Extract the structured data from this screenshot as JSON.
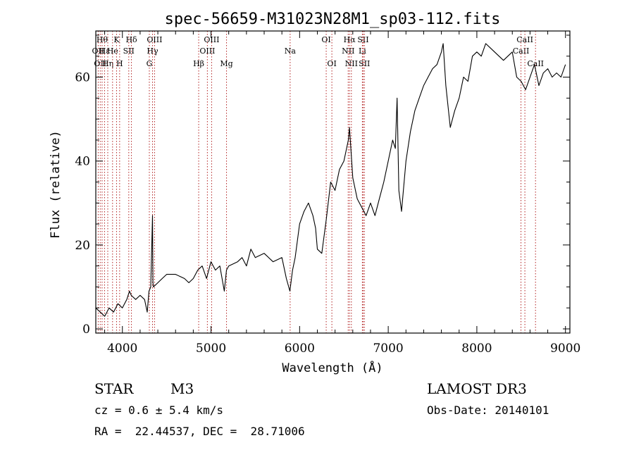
{
  "chart_data": {
    "type": "line",
    "title": "spec-56659-M31023N28M1_sp03-112.fits",
    "xlabel": "Wavelength (Å)",
    "ylabel": "Flux (relative)",
    "xlim": [
      3700,
      9050
    ],
    "ylim": [
      -1,
      71
    ],
    "xticks": [
      4000,
      5000,
      6000,
      7000,
      8000,
      9000
    ],
    "yticks": [
      0,
      20,
      40,
      60
    ],
    "series": [
      {
        "name": "spectrum",
        "x": [
          3700,
          3750,
          3800,
          3850,
          3900,
          3950,
          4000,
          4050,
          4080,
          4100,
          4150,
          4200,
          4250,
          4280,
          4300,
          4320,
          4340,
          4345,
          4350,
          4400,
          4450,
          4500,
          4600,
          4700,
          4750,
          4800,
          4850,
          4900,
          4950,
          5000,
          5050,
          5100,
          5150,
          5175,
          5200,
          5300,
          5350,
          5400,
          5450,
          5500,
          5600,
          5700,
          5800,
          5850,
          5890,
          5920,
          5950,
          6000,
          6050,
          6100,
          6150,
          6180,
          6200,
          6250,
          6300,
          6350,
          6400,
          6450,
          6500,
          6550,
          6563,
          6600,
          6650,
          6700,
          6750,
          6800,
          6850,
          6900,
          6950,
          7000,
          7050,
          7080,
          7100,
          7120,
          7150,
          7200,
          7250,
          7300,
          7350,
          7400,
          7450,
          7500,
          7550,
          7600,
          7620,
          7650,
          7700,
          7750,
          7800,
          7850,
          7900,
          7950,
          8000,
          8050,
          8100,
          8150,
          8200,
          8300,
          8400,
          8450,
          8500,
          8550,
          8600,
          8650,
          8700,
          8750,
          8800,
          8850,
          8900,
          8950,
          9000
        ],
        "y": [
          5,
          4,
          3,
          5,
          4,
          6,
          5,
          7,
          9,
          8,
          7,
          8,
          7,
          4,
          9,
          10,
          27,
          11,
          10,
          11,
          12,
          13,
          13,
          12,
          11,
          12,
          14,
          15,
          12,
          16,
          14,
          15,
          9,
          14,
          15,
          16,
          17,
          15,
          19,
          17,
          18,
          16,
          17,
          12,
          9,
          14,
          17,
          25,
          28,
          30,
          27,
          24,
          19,
          18,
          26,
          35,
          33,
          38,
          40,
          45,
          48,
          36,
          31,
          29,
          27,
          30,
          27,
          31,
          35,
          40,
          45,
          43,
          55,
          33,
          28,
          40,
          47,
          52,
          55,
          58,
          60,
          62,
          63,
          66,
          68,
          58,
          48,
          52,
          55,
          60,
          59,
          65,
          66,
          65,
          68,
          67,
          66,
          64,
          66,
          60,
          59,
          57,
          60,
          63,
          58,
          61,
          62,
          60,
          61,
          60,
          63
        ]
      }
    ],
    "lines": [
      {
        "wl": 3727,
        "label": "OII",
        "row": 2
      },
      {
        "wl": 3750,
        "label": "OII",
        "row": 3
      },
      {
        "wl": 3771,
        "label": "Hθ",
        "row": 1
      },
      {
        "wl": 3799,
        "label": "Hε",
        "row": 2
      },
      {
        "wl": 3835,
        "label": "Hη",
        "row": 3
      },
      {
        "wl": 3889,
        "label": "He",
        "row": 2
      },
      {
        "wl": 3934,
        "label": "K",
        "row": 1
      },
      {
        "wl": 3969,
        "label": "H",
        "row": 3
      },
      {
        "wl": 4072,
        "label": "SII",
        "row": 2
      },
      {
        "wl": 4102,
        "label": "Hδ",
        "row": 1
      },
      {
        "wl": 4304,
        "label": "G",
        "row": 3
      },
      {
        "wl": 4340,
        "label": "Hγ",
        "row": 2
      },
      {
        "wl": 4363,
        "label": "OIII",
        "row": 1
      },
      {
        "wl": 4861,
        "label": "Hβ",
        "row": 3
      },
      {
        "wl": 4959,
        "label": "OIII",
        "row": 2
      },
      {
        "wl": 5007,
        "label": "OIII",
        "row": 1
      },
      {
        "wl": 5175,
        "label": "Mg",
        "row": 3
      },
      {
        "wl": 5893,
        "label": "Na",
        "row": 2
      },
      {
        "wl": 6300,
        "label": "OI",
        "row": 1
      },
      {
        "wl": 6364,
        "label": "OI",
        "row": 3
      },
      {
        "wl": 6548,
        "label": "NII",
        "row": 2
      },
      {
        "wl": 6563,
        "label": "Hα",
        "row": 1
      },
      {
        "wl": 6584,
        "label": "NII",
        "row": 3
      },
      {
        "wl": 6708,
        "label": "Li",
        "row": 2
      },
      {
        "wl": 6717,
        "label": "SII",
        "row": 1
      },
      {
        "wl": 6731,
        "label": "SII",
        "row": 3
      },
      {
        "wl": 8498,
        "label": "CaII",
        "row": 2
      },
      {
        "wl": 8542,
        "label": "CaII",
        "row": 1
      },
      {
        "wl": 8662,
        "label": "CaII",
        "row": 3
      }
    ]
  },
  "footer": {
    "object_class": "STAR",
    "subclass": "M3",
    "survey": "LAMOST DR3",
    "cz": "cz = 0.6 ± 5.4 km/s",
    "obs_date": "Obs-Date: 20140101",
    "coords": "RA =  22.44537, DEC =  28.71006"
  }
}
